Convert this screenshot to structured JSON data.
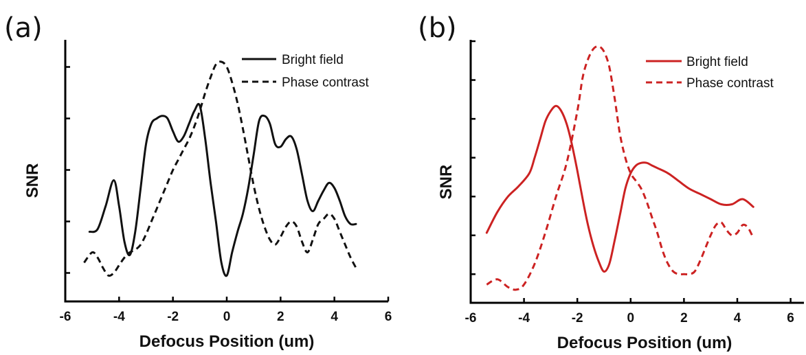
{
  "chart_data": [
    {
      "type": "line",
      "panel_label": "(a)",
      "xlabel": "Defocus Position (um)",
      "ylabel": "SNR",
      "xlim": [
        -6,
        6
      ],
      "xticks": [
        -6,
        -4,
        -2,
        0,
        2,
        4,
        6
      ],
      "ylim": [
        0,
        10
      ],
      "y_tick_values": [
        1.0,
        3.0,
        5.0,
        7.0,
        9.0
      ],
      "y_tick_labels_shown": false,
      "grid": false,
      "legend_position": "top-right",
      "line_color": "#111111",
      "series": [
        {
          "name": "Bright field",
          "style": "solid",
          "x": [
            -5.1,
            -4.8,
            -4.5,
            -4.2,
            -4.0,
            -3.8,
            -3.6,
            -3.4,
            -3.2,
            -3.0,
            -2.8,
            -2.6,
            -2.4,
            -2.2,
            -2.0,
            -1.8,
            -1.6,
            -1.4,
            -1.2,
            -1.0,
            -0.8,
            -0.6,
            -0.4,
            -0.2,
            0.0,
            0.2,
            0.4,
            0.6,
            0.8,
            1.0,
            1.2,
            1.4,
            1.6,
            1.8,
            2.0,
            2.2,
            2.4,
            2.6,
            2.8,
            3.0,
            3.2,
            3.4,
            3.6,
            3.8,
            4.0,
            4.2,
            4.4,
            4.6,
            4.8
          ],
          "y": [
            2.6,
            2.7,
            3.6,
            4.6,
            3.6,
            2.2,
            1.7,
            2.6,
            4.3,
            6.0,
            6.8,
            7.0,
            7.1,
            7.0,
            6.5,
            6.1,
            6.3,
            6.8,
            7.3,
            7.5,
            6.2,
            4.5,
            3.0,
            1.4,
            0.9,
            1.8,
            2.6,
            3.3,
            4.3,
            5.6,
            6.9,
            7.1,
            6.8,
            6.0,
            5.9,
            6.2,
            6.3,
            5.8,
            4.8,
            3.8,
            3.4,
            3.8,
            4.2,
            4.5,
            4.3,
            3.8,
            3.2,
            2.9,
            2.9
          ]
        },
        {
          "name": "Phase contrast",
          "style": "dashed",
          "x": [
            -5.3,
            -5.0,
            -4.8,
            -4.6,
            -4.4,
            -4.2,
            -4.0,
            -3.8,
            -3.6,
            -3.4,
            -3.2,
            -3.0,
            -2.8,
            -2.6,
            -2.4,
            -2.2,
            -2.0,
            -1.8,
            -1.6,
            -1.4,
            -1.2,
            -1.0,
            -0.8,
            -0.6,
            -0.4,
            -0.2,
            0.0,
            0.2,
            0.4,
            0.6,
            0.8,
            1.0,
            1.2,
            1.4,
            1.6,
            1.8,
            2.0,
            2.2,
            2.4,
            2.6,
            2.8,
            3.0,
            3.2,
            3.4,
            3.6,
            3.8,
            4.0,
            4.2,
            4.4,
            4.6,
            4.8
          ],
          "y": [
            1.4,
            1.8,
            1.6,
            1.2,
            0.9,
            1.0,
            1.3,
            1.6,
            1.8,
            1.9,
            2.1,
            2.5,
            3.0,
            3.5,
            4.0,
            4.5,
            5.0,
            5.4,
            5.8,
            6.2,
            6.7,
            7.3,
            8.0,
            8.6,
            9.1,
            9.2,
            9.0,
            8.4,
            7.6,
            6.6,
            5.5,
            4.4,
            3.5,
            2.8,
            2.3,
            2.1,
            2.4,
            2.8,
            3.0,
            2.8,
            2.2,
            1.8,
            2.3,
            2.9,
            3.1,
            3.3,
            3.1,
            2.6,
            2.1,
            1.6,
            1.2
          ]
        }
      ]
    },
    {
      "type": "line",
      "panel_label": "(b)",
      "xlabel": "Defocus Position (um)",
      "ylabel": "SNR",
      "xlim": [
        -6,
        6.5
      ],
      "xticks": [
        -6,
        -4,
        -2,
        0,
        2,
        4,
        6
      ],
      "ylim": [
        0,
        10
      ],
      "y_tick_values": [
        1.0,
        2.5,
        4.0,
        5.5,
        7.0,
        8.5,
        10.0
      ],
      "y_tick_labels_shown": false,
      "grid": false,
      "legend_position": "top-right",
      "line_color": "#cc2222",
      "series": [
        {
          "name": "Bright field",
          "style": "solid",
          "x": [
            -5.4,
            -5.0,
            -4.6,
            -4.2,
            -3.8,
            -3.6,
            -3.4,
            -3.2,
            -3.0,
            -2.8,
            -2.6,
            -2.4,
            -2.2,
            -2.0,
            -1.8,
            -1.6,
            -1.4,
            -1.2,
            -1.0,
            -0.8,
            -0.6,
            -0.4,
            -0.2,
            0.0,
            0.2,
            0.4,
            0.6,
            0.8,
            1.0,
            1.4,
            1.8,
            2.2,
            2.6,
            3.0,
            3.4,
            3.8,
            4.2,
            4.6
          ],
          "y": [
            2.6,
            3.4,
            4.0,
            4.4,
            4.9,
            5.5,
            6.2,
            6.9,
            7.3,
            7.5,
            7.3,
            6.8,
            6.0,
            5.0,
            3.9,
            2.9,
            2.1,
            1.5,
            1.1,
            1.4,
            2.3,
            3.3,
            4.3,
            4.9,
            5.2,
            5.3,
            5.3,
            5.2,
            5.1,
            4.9,
            4.6,
            4.3,
            4.1,
            3.9,
            3.7,
            3.7,
            3.9,
            3.6
          ]
        },
        {
          "name": "Phase contrast",
          "style": "dashed",
          "x": [
            -5.4,
            -5.0,
            -4.6,
            -4.3,
            -4.0,
            -3.6,
            -3.2,
            -2.8,
            -2.4,
            -2.0,
            -1.8,
            -1.6,
            -1.4,
            -1.2,
            -1.0,
            -0.8,
            -0.6,
            -0.4,
            -0.2,
            0.0,
            0.2,
            0.4,
            0.6,
            0.8,
            1.0,
            1.2,
            1.4,
            1.6,
            1.8,
            2.0,
            2.2,
            2.4,
            2.6,
            2.8,
            3.0,
            3.2,
            3.4,
            3.6,
            3.8,
            4.0,
            4.2,
            4.4,
            4.6
          ],
          "y": [
            0.6,
            0.8,
            0.5,
            0.4,
            0.6,
            1.4,
            2.6,
            4.0,
            5.3,
            7.3,
            8.6,
            9.3,
            9.7,
            9.8,
            9.6,
            9.0,
            7.8,
            6.4,
            5.5,
            4.9,
            4.6,
            4.3,
            3.8,
            3.2,
            2.6,
            1.9,
            1.4,
            1.1,
            1.0,
            1.0,
            1.0,
            1.1,
            1.5,
            2.0,
            2.5,
            2.9,
            3.0,
            2.7,
            2.5,
            2.6,
            2.9,
            2.8,
            2.4
          ]
        }
      ]
    }
  ]
}
